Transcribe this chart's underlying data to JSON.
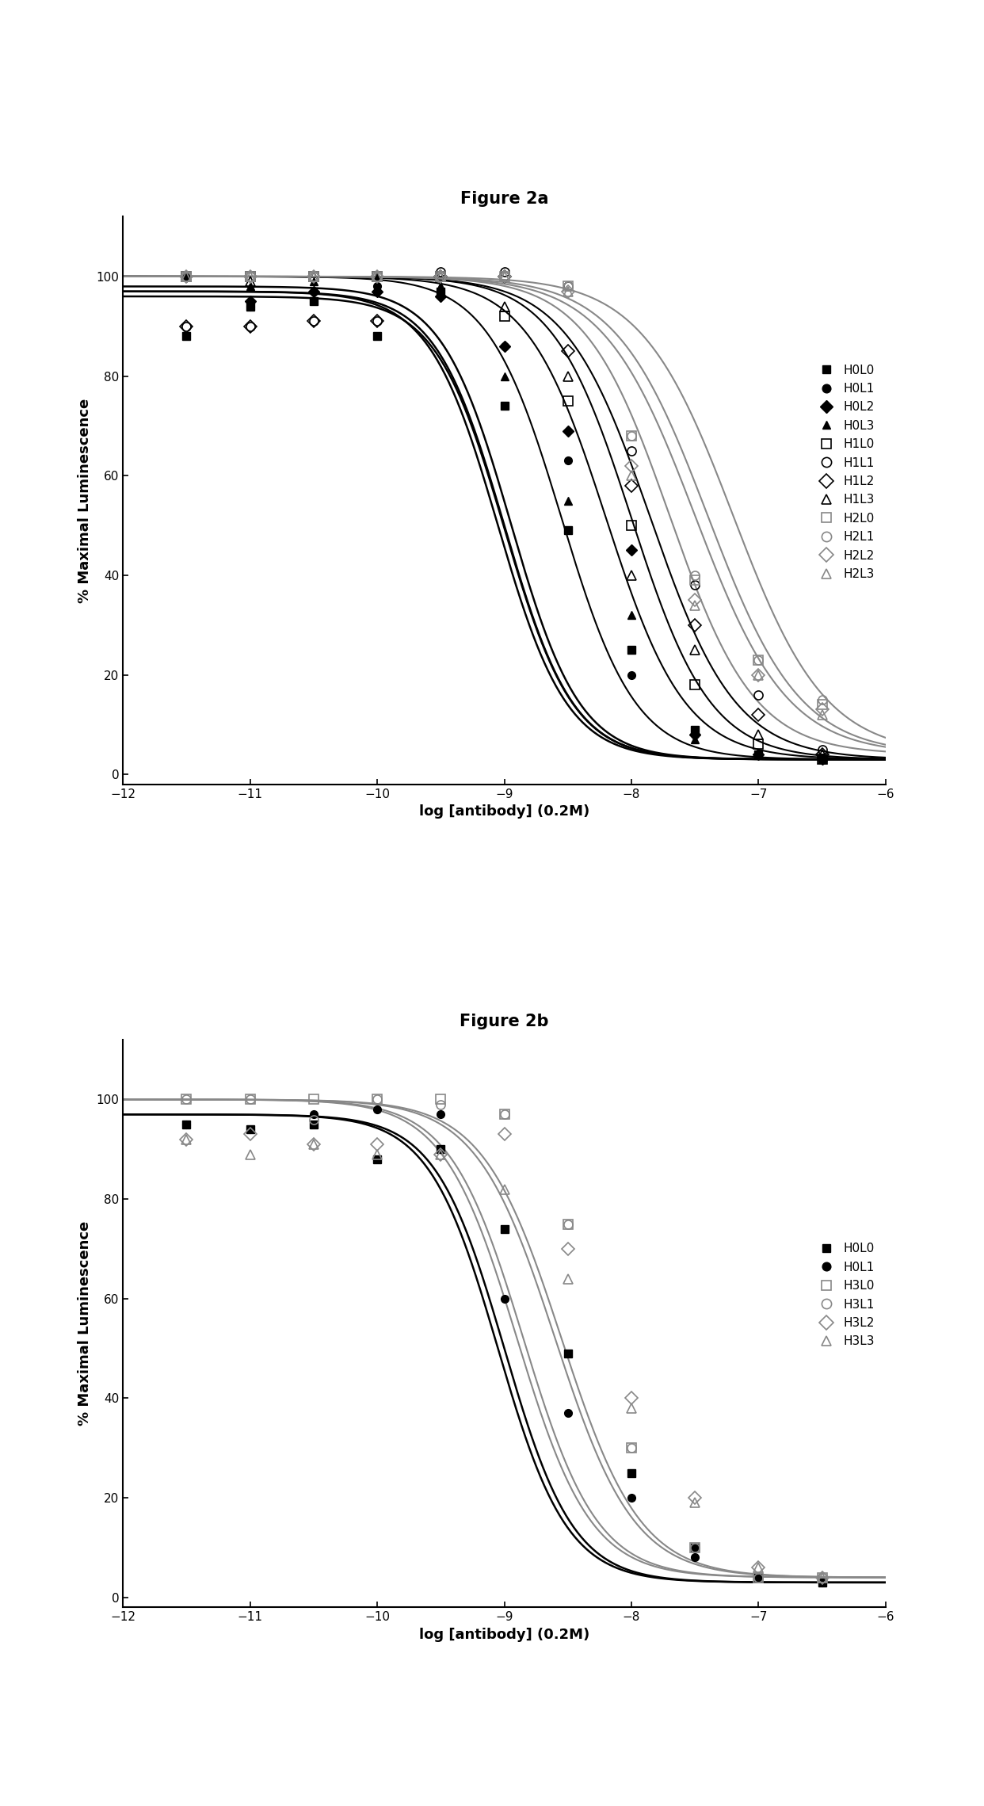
{
  "fig_title_a": "Figure 2a",
  "fig_title_b": "Figure 2b",
  "ylabel": "% Maximal Luminescence",
  "xlabel": "log [antibody] (0.2M)",
  "xlim": [
    -12,
    -6
  ],
  "ylim": [
    -2,
    112
  ],
  "xticks": [
    -12,
    -11,
    -10,
    -9,
    -8,
    -7,
    -6
  ],
  "yticks": [
    0,
    20,
    40,
    60,
    80,
    100
  ],
  "background_color": "#ffffff",
  "panel_a": {
    "series": [
      {
        "label": "H0L0",
        "ec50": -9.0,
        "hill": 1.6,
        "top": 97,
        "bottom": 3,
        "marker": "s",
        "filled": true,
        "color": "#000000",
        "lw": 1.8
      },
      {
        "label": "H0L1",
        "ec50": -9.05,
        "hill": 1.6,
        "top": 97,
        "bottom": 3,
        "marker": "o",
        "filled": true,
        "color": "#000000",
        "lw": 1.8
      },
      {
        "label": "H0L2",
        "ec50": -9.0,
        "hill": 1.6,
        "top": 96,
        "bottom": 3,
        "marker": "D",
        "filled": true,
        "color": "#000000",
        "lw": 1.8
      },
      {
        "label": "H0L3",
        "ec50": -8.95,
        "hill": 1.6,
        "top": 98,
        "bottom": 3,
        "marker": "^",
        "filled": true,
        "color": "#000000",
        "lw": 1.8
      },
      {
        "label": "H1L0",
        "ec50": -8.55,
        "hill": 1.5,
        "top": 100,
        "bottom": 3,
        "marker": "s",
        "filled": false,
        "color": "#000000",
        "lw": 1.5
      },
      {
        "label": "H1L3",
        "ec50": -8.2,
        "hill": 1.4,
        "top": 100,
        "bottom": 3,
        "marker": "^",
        "filled": false,
        "color": "#000000",
        "lw": 1.5
      },
      {
        "label": "H1L2",
        "ec50": -8.0,
        "hill": 1.4,
        "top": 100,
        "bottom": 3,
        "marker": "D",
        "filled": false,
        "color": "#000000",
        "lw": 1.5
      },
      {
        "label": "H1L1",
        "ec50": -7.85,
        "hill": 1.3,
        "top": 100,
        "bottom": 3,
        "marker": "o",
        "filled": false,
        "color": "#000000",
        "lw": 1.5
      },
      {
        "label": "H2L0",
        "ec50": -7.7,
        "hill": 1.3,
        "top": 100,
        "bottom": 4,
        "marker": "s",
        "filled": false,
        "color": "#888888",
        "lw": 1.5
      },
      {
        "label": "H2L3",
        "ec50": -7.5,
        "hill": 1.2,
        "top": 100,
        "bottom": 4,
        "marker": "^",
        "filled": false,
        "color": "#888888",
        "lw": 1.5
      },
      {
        "label": "H2L2",
        "ec50": -7.4,
        "hill": 1.2,
        "top": 100,
        "bottom": 4,
        "marker": "D",
        "filled": false,
        "color": "#888888",
        "lw": 1.5
      },
      {
        "label": "H2L1",
        "ec50": -7.2,
        "hill": 1.2,
        "top": 100,
        "bottom": 4,
        "marker": "o",
        "filled": false,
        "color": "#888888",
        "lw": 1.5
      }
    ],
    "scatter_x": [
      -11.5,
      -11.0,
      -10.5,
      -10.0,
      -9.5,
      -9.0,
      -8.5,
      -8.0,
      -7.5,
      -7.0,
      -6.5
    ],
    "H0L0_y": [
      88,
      94,
      95,
      88,
      97,
      74,
      49,
      25,
      9,
      4,
      3
    ],
    "H0L1_y": [
      100,
      94,
      97,
      98,
      97,
      86,
      63,
      20,
      8,
      4,
      3
    ],
    "H0L2_y": [
      100,
      95,
      97,
      97,
      96,
      86,
      69,
      45,
      8,
      4,
      3
    ],
    "H0L3_y": [
      100,
      98,
      99,
      100,
      98,
      80,
      55,
      32,
      7,
      4,
      3
    ],
    "H1L0_y": [
      100,
      100,
      100,
      100,
      100,
      92,
      75,
      50,
      18,
      6,
      3
    ],
    "H1L1_y": [
      90,
      90,
      91,
      91,
      101,
      101,
      98,
      65,
      38,
      16,
      5
    ],
    "H1L2_y": [
      90,
      90,
      91,
      91,
      100,
      100,
      85,
      58,
      30,
      12,
      4
    ],
    "H1L3_y": [
      100,
      99,
      100,
      100,
      100,
      94,
      80,
      40,
      25,
      8,
      4
    ],
    "H2L0_y": [
      100,
      100,
      100,
      100,
      100,
      100,
      98,
      68,
      39,
      23,
      14
    ],
    "H2L1_y": [
      100,
      100,
      100,
      100,
      100,
      100,
      98,
      68,
      40,
      23,
      15
    ],
    "H2L2_y": [
      100,
      100,
      100,
      100,
      100,
      100,
      97,
      62,
      35,
      20,
      13
    ],
    "H2L3_y": [
      100,
      100,
      100,
      100,
      100,
      100,
      97,
      60,
      34,
      20,
      12
    ]
  },
  "panel_a_legend_order": [
    "H0L0",
    "H0L1",
    "H0L2",
    "H0L3",
    "H1L0",
    "H1L1",
    "H1L2",
    "H1L3",
    "H2L0",
    "H2L1",
    "H2L2",
    "H2L3"
  ],
  "panel_b": {
    "series": [
      {
        "label": "H0L0",
        "ec50": -9.0,
        "hill": 1.6,
        "top": 97,
        "bottom": 3,
        "marker": "s",
        "filled": true,
        "color": "#000000",
        "lw": 1.8
      },
      {
        "label": "H0L1",
        "ec50": -9.05,
        "hill": 1.6,
        "top": 97,
        "bottom": 3,
        "marker": "o",
        "filled": true,
        "color": "#000000",
        "lw": 1.8
      },
      {
        "label": "H3L0",
        "ec50": -8.9,
        "hill": 1.5,
        "top": 100,
        "bottom": 4,
        "marker": "s",
        "filled": false,
        "color": "#888888",
        "lw": 1.5
      },
      {
        "label": "H3L1",
        "ec50": -8.85,
        "hill": 1.5,
        "top": 100,
        "bottom": 4,
        "marker": "o",
        "filled": false,
        "color": "#888888",
        "lw": 1.5
      },
      {
        "label": "H3L2",
        "ec50": -8.6,
        "hill": 1.4,
        "top": 100,
        "bottom": 4,
        "marker": "D",
        "filled": false,
        "color": "#888888",
        "lw": 1.5
      },
      {
        "label": "H3L3",
        "ec50": -8.55,
        "hill": 1.4,
        "top": 100,
        "bottom": 4,
        "marker": "^",
        "filled": false,
        "color": "#888888",
        "lw": 1.5
      }
    ],
    "scatter_x": [
      -11.5,
      -11.0,
      -10.5,
      -10.0,
      -9.5,
      -9.0,
      -8.5,
      -8.0,
      -7.5,
      -7.0,
      -6.5
    ],
    "H0L0_y": [
      95,
      94,
      95,
      88,
      90,
      74,
      49,
      25,
      10,
      4,
      3
    ],
    "H0L1_y": [
      95,
      94,
      97,
      98,
      97,
      60,
      37,
      20,
      8,
      4,
      3
    ],
    "H3L0_y": [
      100,
      100,
      100,
      100,
      100,
      97,
      75,
      30,
      10,
      4,
      4
    ],
    "H3L1_y": [
      100,
      100,
      96,
      100,
      99,
      97,
      75,
      30,
      10,
      4,
      4
    ],
    "H3L2_y": [
      92,
      93,
      91,
      91,
      89,
      93,
      70,
      40,
      20,
      6,
      4
    ],
    "H3L3_y": [
      92,
      89,
      91,
      89,
      89,
      82,
      64,
      38,
      19,
      6,
      4
    ]
  },
  "panel_b_legend_order": [
    "H0L0",
    "H0L1",
    "H3L0",
    "H3L1",
    "H3L2",
    "H3L3"
  ]
}
